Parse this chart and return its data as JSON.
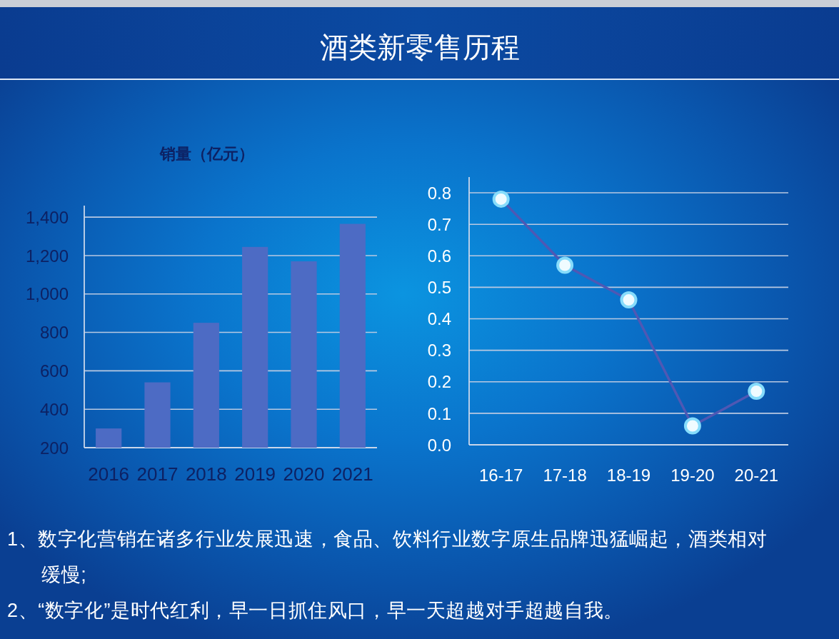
{
  "chart_data": [
    {
      "type": "other",
      "title": "酒类新零售历程"
    },
    {
      "type": "bar",
      "ylabel": "销量（亿元）",
      "categories": [
        "2016",
        "2017",
        "2018",
        "2019",
        "2020",
        "2021"
      ],
      "values": [
        300,
        540,
        850,
        1245,
        1170,
        1365
      ],
      "color": "#4d6bc4",
      "ylim": [
        200,
        1460
      ],
      "yticks": [
        200,
        400,
        600,
        800,
        {
          "value": 1000,
          "label": "1,000"
        },
        {
          "value": 1200,
          "label": "1,200"
        },
        {
          "value": 1400,
          "label": "1,400"
        }
      ],
      "grid": "y"
    },
    {
      "type": "line",
      "categories": [
        "16-17",
        "17-18",
        "18-19",
        "19-20",
        "20-21"
      ],
      "values": [
        0.78,
        0.57,
        0.46,
        0.06,
        0.17
      ],
      "color": "#4f58b4",
      "ylim": [
        0,
        0.85
      ],
      "yticks": [
        {
          "value": 0,
          "label": "0.0"
        },
        0.1,
        0.2,
        0.3,
        0.4,
        0.5,
        0.6,
        0.7,
        0.8
      ],
      "grid": "y",
      "marker": "circle",
      "line_style": "solid"
    },
    {
      "type": "other",
      "annotations": [
        "1、数字化营销在诸多行业发展迅速，食品、饮料行业数字原生品牌迅猛崛起，酒类相对缓慢;",
        "2、“数字化”是时代红利，早一日抓住风口，早一天超越对手超越自我。"
      ]
    }
  ]
}
